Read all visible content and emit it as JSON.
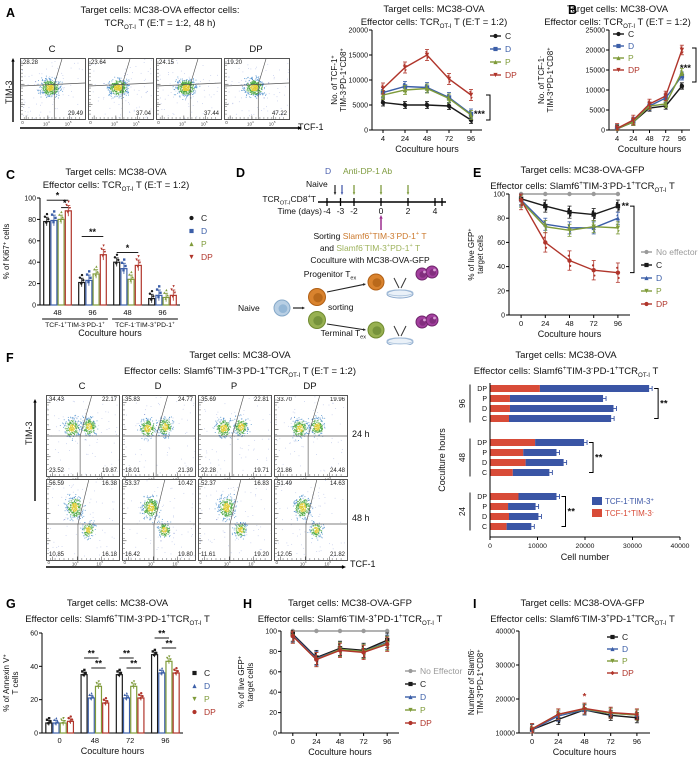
{
  "colors": {
    "c": "#1a1a1a",
    "d": "#3c5fa8",
    "p": "#7f9b3a",
    "dp": "#b0352b",
    "gray": "#9a9a9a",
    "bar_blue": "#3a55a5",
    "bar_red": "#d84b38",
    "orange": "#cc7a2e",
    "lightgreen": "#9eb35c",
    "purple_arrow": "#9b2d8e",
    "blue_label": "#4a5fae",
    "green_label": "#7f9b3f"
  },
  "panel_a": {
    "label": "A",
    "title1": "Target cells: MC38-OVA effector cells:",
    "title2": "TCR~OT-I~ T (E:T = 1:2, 48 h)",
    "xaxis": "TCF-1",
    "yaxis": "TIM-3",
    "xticks": [
      "0",
      "10^4^",
      "10^5^"
    ],
    "plots": [
      {
        "name": "C",
        "tl": "28.28",
        "br": "29.49"
      },
      {
        "name": "D",
        "tl": "23.64",
        "br": "37.04"
      },
      {
        "name": "P",
        "tl": "24.15",
        "br": "37.44"
      },
      {
        "name": "DP",
        "tl": "19.20",
        "br": "47.22"
      }
    ]
  },
  "panel_d": {
    "label": "D",
    "drug_d": "D",
    "drug_ab": "Anti-DP-1 Ab",
    "naive": "Naive",
    "cell_line": "TCR~OT-I~CD8^+^T",
    "time_label": "Time (days)",
    "ticks": [
      "-4",
      "-3",
      "-2",
      "0",
      "2",
      "4"
    ],
    "sorting": "Sorting",
    "sort1": "Slamf6^+^TIM-3^-^PD-1^+^ T",
    "and": "and",
    "sort2": "Slamf6^-^TIM-3^+^PD-1^+^ T",
    "coculture": "Coculture with MC38-OVA-GFP",
    "progenitor": "Progenitor T~ex~",
    "terminal": "Terminal T~ex~",
    "naive2": "Naive",
    "sorting2": "sorting"
  },
  "panel_f": {
    "label": "F",
    "title1": "Target cells: MC38-OVA",
    "title2": "Effector cells: Slamf6^+^TIM-3^-^PD-1^+^TCR~OT-I~ T (E:T = 1:2)",
    "xaxis": "TCF-1",
    "yaxis": "TIM-3",
    "xticks": [
      "0",
      "10^4^",
      "10^5^"
    ],
    "row_labels": [
      "24 h",
      "48 h"
    ],
    "rows": [
      {
        "plots": [
          {
            "name": "C",
            "tl": "34.43",
            "tr": "22.17",
            "bl": "23.52",
            "br": "19.87"
          },
          {
            "name": "D",
            "tl": "35.83",
            "tr": "24.77",
            "bl": "18.01",
            "br": "21.39"
          },
          {
            "name": "P",
            "tl": "35.69",
            "tr": "22.81",
            "bl": "22.28",
            "br": "19.71"
          },
          {
            "name": "DP",
            "tl": "33.70",
            "tr": "19.96",
            "bl": "21.86",
            "br": "24.48"
          }
        ]
      },
      {
        "plots": [
          {
            "name": "C",
            "tl": "56.59",
            "tr": "16.38",
            "bl": "10.85",
            "br": "16.18"
          },
          {
            "name": "D",
            "tl": "53.37",
            "tr": "10.42",
            "bl": "16.42",
            "br": "19.80"
          },
          {
            "name": "P",
            "tl": "52.37",
            "tr": "16.83",
            "bl": "11.61",
            "br": "19.20"
          },
          {
            "name": "DP",
            "tl": "51.49",
            "tr": "14.63",
            "bl": "12.05",
            "br": "21.82"
          }
        ]
      }
    ]
  },
  "chart_data": [
    {
      "id": "a_line",
      "type": "line",
      "title1": "Target cells: MC38-OVA",
      "title2": "Effector cells: TCR~OT-I~ T (E:T = 1:2)",
      "ylabel": [
        "No. of TCF-1^+^",
        "TIM-3^-^PD-1^+^CD8^+^"
      ],
      "xlabel": "Coculture hours",
      "x": [
        "4",
        "24",
        "48",
        "72",
        "96"
      ],
      "ylim": [
        0,
        20000
      ],
      "yticks": [
        0,
        5000,
        10000,
        15000,
        20000
      ],
      "series": [
        {
          "name": "C",
          "color": "c",
          "marker": "circle",
          "values": [
            5500,
            5000,
            5000,
            4800,
            2000
          ],
          "err": 700
        },
        {
          "name": "D",
          "color": "d",
          "marker": "square",
          "values": [
            7500,
            8700,
            8500,
            6500,
            3200
          ],
          "err": 1000
        },
        {
          "name": "P",
          "color": "p",
          "marker": "tri",
          "values": [
            7000,
            8000,
            8300,
            6300,
            3000
          ],
          "err": 900
        },
        {
          "name": "DP",
          "color": "dp",
          "marker": "tridown",
          "values": [
            8300,
            12500,
            15000,
            10200,
            7000
          ],
          "err": 1100
        }
      ],
      "sig": {
        "text": "***",
        "y1": 7000,
        "y2": 2000,
        "x_off": 8,
        "text_y": 3200
      }
    },
    {
      "id": "b_line",
      "type": "line",
      "letter": "B",
      "title1": "Target cells: MC38-OVA",
      "title2": "Effector cells: TCR~OT-I~ T (E:T = 1:2)",
      "ylabel": [
        "No. of TCF-1^-^",
        "TIM-3^+^PD-1^+^CD8^+^"
      ],
      "xlabel": "Coculture hours",
      "x": [
        "4",
        "24",
        "48",
        "72",
        "96"
      ],
      "ylim": [
        0,
        25000
      ],
      "yticks": [
        0,
        5000,
        10000,
        15000,
        20000,
        25000
      ],
      "series": [
        {
          "name": "C",
          "color": "c",
          "marker": "circle",
          "values": [
            300,
            2000,
            5500,
            6000,
            11000
          ],
          "err": 800
        },
        {
          "name": "D",
          "color": "d",
          "marker": "square",
          "values": [
            400,
            2200,
            6000,
            8000,
            13500
          ],
          "err": 1000
        },
        {
          "name": "P",
          "color": "p",
          "marker": "tri",
          "values": [
            350,
            2000,
            6000,
            6500,
            14500
          ],
          "err": 900
        },
        {
          "name": "DP",
          "color": "dp",
          "marker": "tridown",
          "values": [
            400,
            2500,
            6500,
            8500,
            20000
          ],
          "err": 1200
        }
      ],
      "sig": {
        "text": "***",
        "y1": 20500,
        "y2": 12000,
        "x_off": 6,
        "text_y": 15500
      }
    },
    {
      "id": "c_bar",
      "type": "bar",
      "letter": "C",
      "title1": "Target cells: MC38-OVA",
      "title2": "Effector cells: TCR~OT-I~ T (E:T = 1:2)",
      "ylabel": [
        "% of Ki67^+^ cells"
      ],
      "xlabel": "Coculture hours",
      "groups": [
        "48",
        "96",
        "48",
        "96"
      ],
      "group_brackets": [
        {
          "from": 0,
          "to": 1,
          "label": "TCF-1^+^TIM-3^-^PD-1^+^"
        },
        {
          "from": 2,
          "to": 3,
          "label": "TCF-1^-^TIM-3^+^PD-1^+^"
        }
      ],
      "ylim": [
        0,
        100
      ],
      "yticks": [
        0,
        20,
        40,
        60,
        80,
        100
      ],
      "series": [
        {
          "name": "C",
          "color": "c",
          "marker": "circle",
          "values": [
            78,
            21,
            40,
            6
          ],
          "err": 4
        },
        {
          "name": "D",
          "color": "d",
          "marker": "square",
          "values": [
            79,
            23,
            34,
            9
          ],
          "err": 5
        },
        {
          "name": "P",
          "color": "p",
          "marker": "tri",
          "values": [
            80,
            29,
            24,
            7
          ],
          "err": 4
        },
        {
          "name": "DP",
          "color": "dp",
          "marker": "tridown",
          "values": [
            88,
            47,
            37,
            9
          ],
          "err": 5
        }
      ],
      "sigs": [
        {
          "g": 0,
          "s1": 0,
          "s2": 3,
          "y": 98,
          "text": "*"
        },
        {
          "g": 0,
          "s1": 2,
          "s2": 3,
          "y": 91,
          "text": "*"
        },
        {
          "g": 1,
          "s1": 0,
          "s2": 3,
          "y": 64,
          "text": "**"
        },
        {
          "g": 2,
          "s1": 0,
          "s2": 3,
          "y": 49,
          "text": "*"
        }
      ]
    },
    {
      "id": "e_line",
      "type": "line",
      "letter": "E",
      "title1": "Target cells: MC38-OVA-GFP",
      "title2": "Effector cells: Slamf6^+^TIM-3^-^PD-1^+^TCR~OT-I~ T",
      "ylabel": [
        "% of live GFP^+^",
        "target cells"
      ],
      "xlabel": "Coculture hours",
      "x": [
        "0",
        "24",
        "48",
        "72",
        "96"
      ],
      "ylim": [
        0,
        100
      ],
      "yticks": [
        0,
        20,
        40,
        60,
        80,
        100
      ],
      "series": [
        {
          "name": "No effector",
          "color": "gray",
          "marker": "circle",
          "values": [
            100,
            100,
            100,
            100,
            100
          ],
          "err": 1
        },
        {
          "name": "C",
          "color": "c",
          "marker": "square",
          "values": [
            96,
            90,
            85,
            83,
            90
          ],
          "err": 5
        },
        {
          "name": "D",
          "color": "d",
          "marker": "tri",
          "values": [
            95,
            75,
            72,
            72,
            80
          ],
          "err": 5
        },
        {
          "name": "P",
          "color": "p",
          "marker": "tridown",
          "values": [
            94,
            73,
            70,
            73,
            72
          ],
          "err": 5
        },
        {
          "name": "DP",
          "color": "dp",
          "marker": "circle",
          "values": [
            95,
            60,
            45,
            37,
            35
          ],
          "err": 8
        }
      ],
      "sig": {
        "text": "**",
        "y1": 90,
        "y2": 35,
        "x_off": 4,
        "text_y": 90
      }
    },
    {
      "id": "f_hbar",
      "type": "hbar",
      "title1": "Target cells: MC38-OVA",
      "title2": "Effector cells: Slamf6^+^TIM-3^-^PD-1^+^TCR~OT-I~ T",
      "xlabel": "Cell number",
      "ylabel_rot": "Coculture hours",
      "xlim": [
        0,
        40000
      ],
      "xticks": [
        0,
        10000,
        20000,
        30000,
        40000
      ],
      "legend": [
        {
          "label": "TCF-1^-^TIM-3^+^",
          "color": "bar_blue"
        },
        {
          "label": "TCF-1^+^TIM-3^-^",
          "color": "bar_red"
        }
      ],
      "groups": [
        {
          "label": "96",
          "sig": "**",
          "rows": [
            {
              "name": "DP",
              "red": 10500,
              "blue": 23000
            },
            {
              "name": "P",
              "red": 4200,
              "blue": 19600
            },
            {
              "name": "D",
              "red": 4200,
              "blue": 21800
            },
            {
              "name": "C",
              "red": 4000,
              "blue": 21500
            }
          ]
        },
        {
          "label": "48",
          "sig": "**",
          "rows": [
            {
              "name": "DP",
              "red": 9500,
              "blue": 10300
            },
            {
              "name": "P",
              "red": 7000,
              "blue": 7000
            },
            {
              "name": "D",
              "red": 7500,
              "blue": 8000
            },
            {
              "name": "C",
              "red": 4800,
              "blue": 7700
            }
          ]
        },
        {
          "label": "24",
          "sig": "**",
          "rows": [
            {
              "name": "DP",
              "red": 6000,
              "blue": 8000
            },
            {
              "name": "P",
              "red": 3800,
              "blue": 5800
            },
            {
              "name": "D",
              "red": 4000,
              "blue": 6200
            },
            {
              "name": "C",
              "red": 3500,
              "blue": 5200
            }
          ]
        }
      ]
    },
    {
      "id": "g_bar",
      "type": "bar",
      "letter": "G",
      "title1": "Target cells: MC38-OVA",
      "title2": "Effector cells: Slamf6^+^TIM-3^-^PD-1^+^TCR~OT-I~ T",
      "ylabel": [
        "% of Annexin V^+^",
        "T cells"
      ],
      "xlabel": "Coculture hours",
      "groups": [
        "0",
        "48",
        "72",
        "96"
      ],
      "ylim": [
        0,
        60
      ],
      "yticks": [
        0,
        20,
        40,
        60
      ],
      "series": [
        {
          "name": "C",
          "color": "c",
          "marker": "square",
          "values": [
            6,
            35,
            35,
            47
          ],
          "err": 1.5
        },
        {
          "name": "D",
          "color": "d",
          "marker": "tri",
          "values": [
            6,
            21,
            21,
            36
          ],
          "err": 1.5
        },
        {
          "name": "P",
          "color": "p",
          "marker": "tridown",
          "values": [
            6,
            28,
            28,
            43
          ],
          "err": 1.5
        },
        {
          "name": "DP",
          "color": "dp",
          "marker": "circle",
          "values": [
            7,
            18,
            21,
            36
          ],
          "err": 1.5
        }
      ],
      "sigs": [
        {
          "g": 1,
          "s1": 0,
          "s2": 2,
          "y": 45,
          "text": "**"
        },
        {
          "g": 1,
          "s1": 1,
          "s2": 3,
          "y": 39,
          "text": "**"
        },
        {
          "g": 2,
          "s1": 0,
          "s2": 2,
          "y": 45,
          "text": "**"
        },
        {
          "g": 2,
          "s1": 1,
          "s2": 3,
          "y": 39,
          "text": "**"
        },
        {
          "g": 3,
          "s1": 0,
          "s2": 2,
          "y": 57,
          "text": "**"
        },
        {
          "g": 3,
          "s1": 1,
          "s2": 3,
          "y": 51,
          "text": "**"
        }
      ]
    },
    {
      "id": "h_line",
      "type": "line",
      "letter": "H",
      "title1": "Target cells: MC38-OVA-GFP",
      "title2": "Effector cells: Slamf6^-^TIM-3^+^PD-1^+^TCR~OT-I~ T",
      "ylabel": [
        "% of live GFP^+^",
        "target cells"
      ],
      "xlabel": "Coculture hours",
      "x": [
        "0",
        "24",
        "48",
        "72",
        "96"
      ],
      "ylim": [
        0,
        100
      ],
      "yticks": [
        0,
        20,
        40,
        60,
        80,
        100
      ],
      "series": [
        {
          "name": "No Effector",
          "color": "gray",
          "marker": "circle",
          "values": [
            100,
            100,
            100,
            100,
            100
          ],
          "err": 1
        },
        {
          "name": "C",
          "color": "c",
          "marker": "square",
          "values": [
            97,
            74,
            83,
            81,
            91
          ],
          "err": 7
        },
        {
          "name": "D",
          "color": "d",
          "marker": "tri",
          "values": [
            96,
            73,
            82,
            80,
            89
          ],
          "err": 7
        },
        {
          "name": "P",
          "color": "p",
          "marker": "tridown",
          "values": [
            95,
            72,
            82,
            80,
            88
          ],
          "err": 7
        },
        {
          "name": "DP",
          "color": "dp",
          "marker": "circle",
          "values": [
            95,
            72,
            81,
            79,
            87
          ],
          "err": 7
        }
      ]
    },
    {
      "id": "i_line",
      "type": "line",
      "letter": "I",
      "title1": "Target cells: MC38-OVA-GFP",
      "title2": "Effector cells: Slamf6^-^TIM-3^+^PD-1^+^TCR~OT-I~ T",
      "ylabel": [
        "Number of Slamf6^-^",
        "TIM-3^+^PD-1^+^CD8^+^"
      ],
      "xlabel": "Coculture hours",
      "x": [
        "0",
        "24",
        "48",
        "72",
        "96"
      ],
      "ylim": [
        10000,
        40000
      ],
      "yticks": [
        10000,
        20000,
        30000,
        40000
      ],
      "series": [
        {
          "name": "C",
          "color": "c",
          "marker": "square",
          "values": [
            11000,
            14000,
            16800,
            15200,
            14500
          ],
          "err": 1500
        },
        {
          "name": "D",
          "color": "d",
          "marker": "tri",
          "values": [
            11000,
            15000,
            16800,
            15800,
            15300
          ],
          "err": 1500
        },
        {
          "name": "P",
          "color": "p",
          "marker": "tridown",
          "values": [
            11200,
            15500,
            17000,
            15800,
            15300
          ],
          "err": 1500
        },
        {
          "name": "DP",
          "color": "dp",
          "marker": "diamond",
          "values": [
            11200,
            15500,
            17200,
            16000,
            15500
          ],
          "err": 1600
        }
      ],
      "star": {
        "xi": 2,
        "y": 19800,
        "text": "*",
        "color": "dp"
      }
    }
  ]
}
